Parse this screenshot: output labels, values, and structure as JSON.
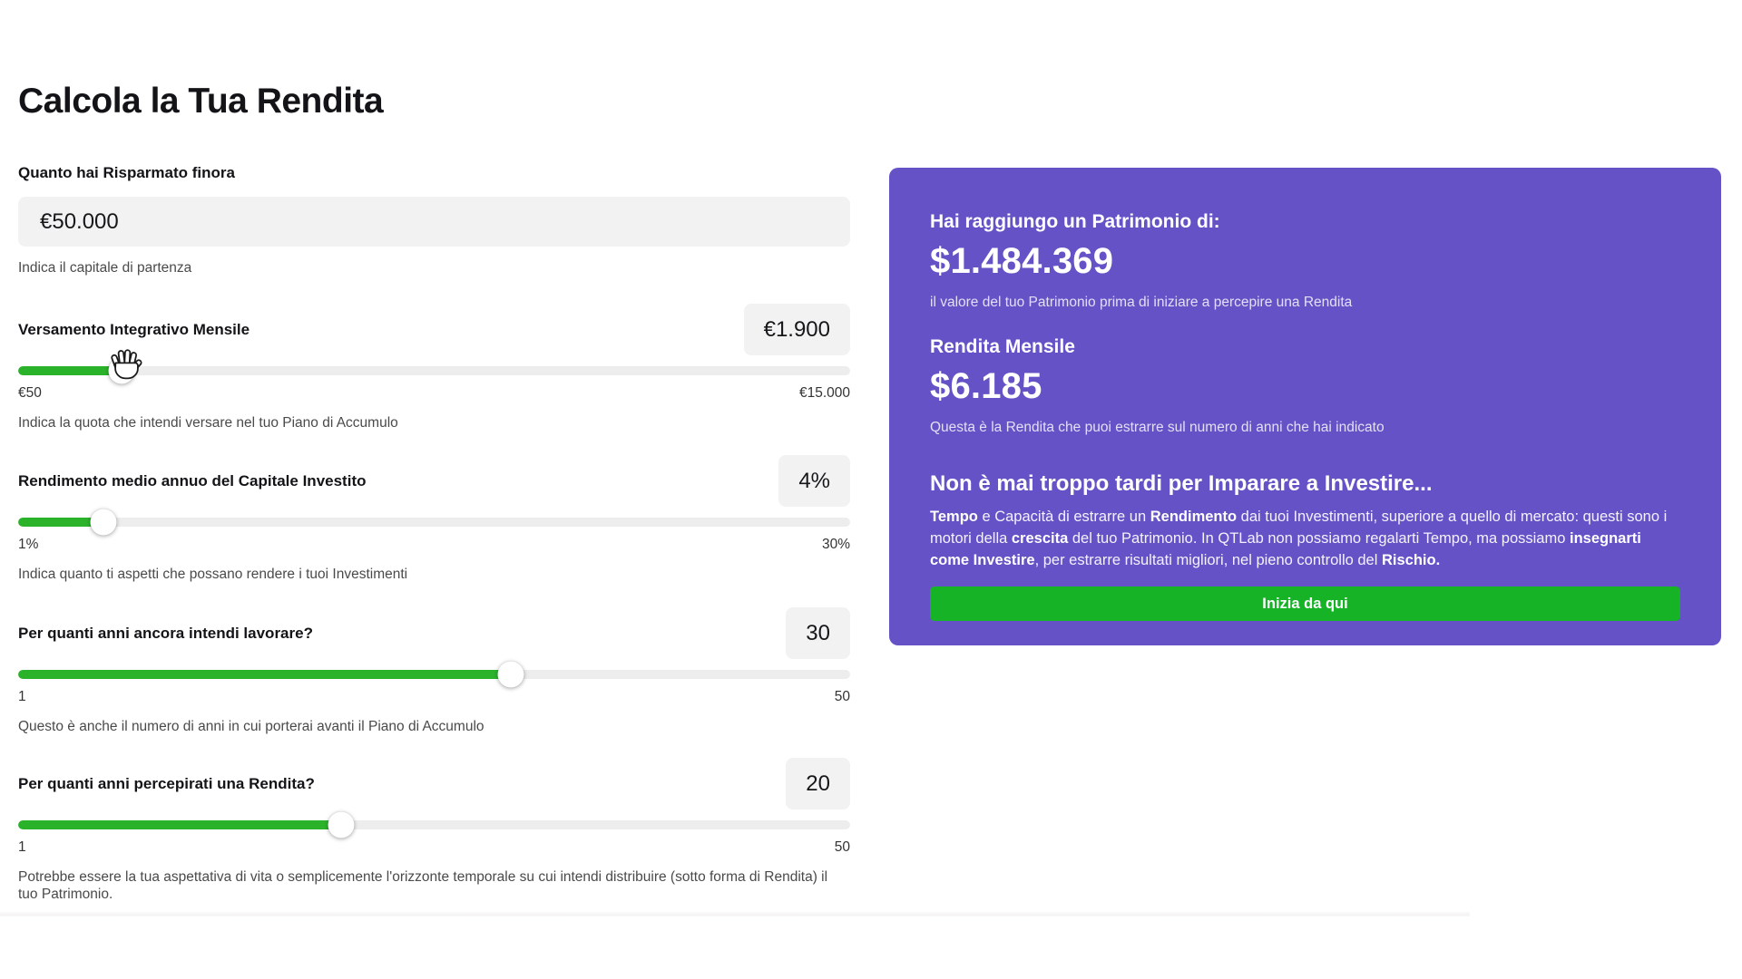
{
  "page": {
    "title": "Calcola la Tua Rendita"
  },
  "colors": {
    "card_purple": "#6552c6",
    "cta_green": "#17b327",
    "slider_green": "#2bb22b",
    "field_gray": "#f2f2f2"
  },
  "savings": {
    "label": "Quanto hai Risparmato finora",
    "value": "€50.000",
    "helper": "Indica il capitale di partenza"
  },
  "sliders": [
    {
      "label": "Versamento Integrativo Mensile",
      "value": "€1.900",
      "min": "€50",
      "max": "€15.000",
      "helper": "Indica la quota che intendi versare nel tuo Piano di Accumulo",
      "fill_pct": "12.4%"
    },
    {
      "label": "Rendimento medio annuo del Capitale Investito",
      "value": "4%",
      "min": "1%",
      "max": "30%",
      "helper": "Indica quanto ti aspetti che possano rendere i tuoi Investimenti",
      "fill_pct": "10.3%"
    },
    {
      "label": "Per quanti anni ancora intendi lavorare?",
      "value": "30",
      "min": "1",
      "max": "50",
      "helper": "Questo è anche il numero di anni in cui porterai avanti il Piano di Accumulo",
      "fill_pct": "59.2%"
    },
    {
      "label": "Per quanti anni percepirati una Rendita?",
      "value": "20",
      "min": "1",
      "max": "50",
      "helper": "Potrebbe essere la tua aspettativa di vita o semplicemente l'orizzonte temporale su cui intendi distribuire (sotto forma di Rendita) il tuo Patrimonio.",
      "fill_pct": "38.8%"
    }
  ],
  "results_card": {
    "patrimonio": {
      "heading": "Hai raggiungo un Patrimonio di:",
      "amount": "$1.484.369",
      "caption": "il valore del tuo Patrimonio prima di iniziare a percepire una Rendita"
    },
    "rendita": {
      "heading": "Rendita Mensile",
      "amount": "$6.185",
      "caption": "Questa è la Rendita che puoi estrarre sul numero di anni che hai indicato"
    },
    "learn": {
      "heading": "Non è mai troppo tardi per Imparare a Investire...",
      "paragraph_segments": [
        {
          "text": "Tempo",
          "bold": true
        },
        {
          "text": " e Capacità di estrarre un ",
          "bold": false
        },
        {
          "text": "Rendimento",
          "bold": true
        },
        {
          "text": " dai tuoi Investimenti, superiore a quello di mercato: questi sono i motori della ",
          "bold": false
        },
        {
          "text": "crescita",
          "bold": true
        },
        {
          "text": " del tuo Patrimonio. In QTLab non possiamo regalarti Tempo, ma possiamo ",
          "bold": false
        },
        {
          "text": "insegnarti come Investire",
          "bold": true
        },
        {
          "text": ", per estrarre risultati migliori, nel pieno controllo del ",
          "bold": false
        },
        {
          "text": "Rischio.",
          "bold": true
        }
      ],
      "cta_label": "Inizia da qui"
    }
  }
}
